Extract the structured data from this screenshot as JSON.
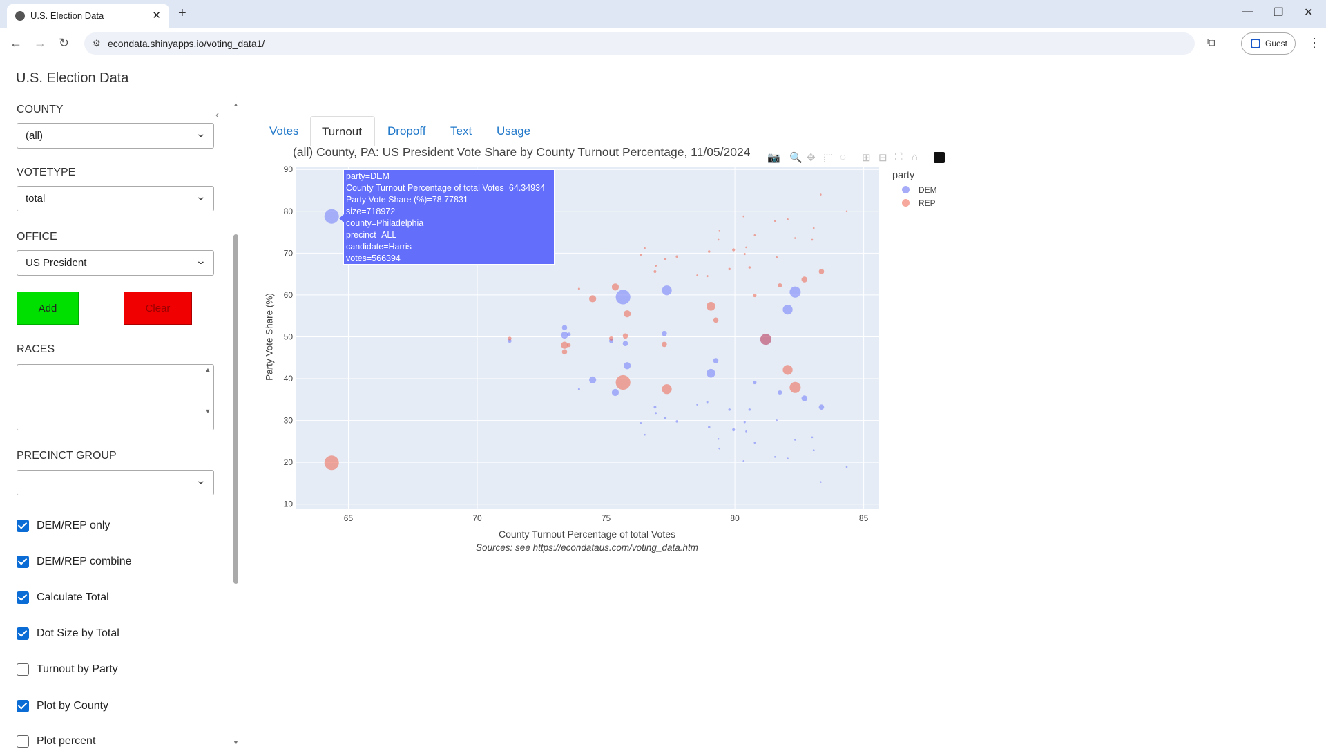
{
  "browser": {
    "tab_title": "U.S. Election Data",
    "url": "econdata.shinyapps.io/voting_data1/",
    "profile": "Guest"
  },
  "app": {
    "title": "U.S. Election Data"
  },
  "sidebar": {
    "county": {
      "label": "COUNTY",
      "value": "(all)"
    },
    "votetype": {
      "label": "VOTETYPE",
      "value": "total"
    },
    "office": {
      "label": "OFFICE",
      "value": "US President"
    },
    "add_label": "Add",
    "clear_label": "Clear",
    "races": {
      "label": "RACES",
      "value": ""
    },
    "precinct_group": {
      "label": "PRECINCT GROUP",
      "value": ""
    },
    "checkboxes": [
      {
        "label": "DEM/REP only",
        "checked": true
      },
      {
        "label": "DEM/REP combine",
        "checked": true
      },
      {
        "label": "Calculate Total",
        "checked": true
      },
      {
        "label": "Dot Size by Total",
        "checked": true
      },
      {
        "label": "Turnout by Party",
        "checked": false
      },
      {
        "label": "Plot by County",
        "checked": true
      },
      {
        "label": "Plot percent",
        "checked": false
      }
    ],
    "colors": {
      "add": "#00e000",
      "clear": "#f00000"
    }
  },
  "tabs": [
    {
      "label": "Votes"
    },
    {
      "label": "Turnout",
      "active": true
    },
    {
      "label": "Dropoff"
    },
    {
      "label": "Text"
    },
    {
      "label": "Usage"
    }
  ],
  "toolbar": [
    "camera-icon",
    "zoom-icon",
    "pan-icon",
    "box-select-icon",
    "lasso-icon",
    "zoom-in-icon",
    "zoom-out-icon",
    "autoscale-icon",
    "reset-axes-icon",
    "plotly-logo-icon"
  ],
  "tooltip": {
    "lines": [
      "party=DEM",
      "County Turnout Percentage of total Votes=64.34934",
      "Party Vote Share (%)=78.77831",
      "size=718972",
      "county=Philadelphia",
      "precinct=ALL",
      "candidate=Harris",
      "votes=566394"
    ]
  },
  "chart_data": {
    "type": "scatter",
    "title": "(all) County, PA: US President Vote Share by County Turnout Percentage, 11/05/2024",
    "xlabel": "County Turnout Percentage of total Votes",
    "ylabel": "Party Vote Share (%)",
    "note": "Sources: see https://econdataus.com/voting_data.htm",
    "xlim": [
      62.95,
      85.6
    ],
    "ylim": [
      8.8,
      90.7
    ],
    "xticks": [
      65,
      70,
      75,
      80,
      85
    ],
    "yticks": [
      10,
      20,
      30,
      40,
      50,
      60,
      70,
      80,
      90
    ],
    "grid": true,
    "legend_title": "party",
    "legend_position": "right",
    "series": [
      {
        "name": "DEM",
        "color": "#636efa"
      },
      {
        "name": "REP",
        "color": "#ef553b"
      }
    ],
    "columns": [
      "turnout",
      "dem_share",
      "rep_share",
      "size"
    ],
    "points": [
      [
        64.35,
        78.78,
        19.9,
        718972
      ],
      [
        75.66,
        59.5,
        39.1,
        730000
      ],
      [
        77.36,
        61.1,
        37.5,
        330000
      ],
      [
        82.34,
        60.7,
        37.9,
        420000
      ],
      [
        82.05,
        56.5,
        42.1,
        330000
      ],
      [
        81.2,
        49.4,
        49.4,
        420000
      ],
      [
        75.36,
        36.7,
        61.9,
        170000
      ],
      [
        74.48,
        39.7,
        59.1,
        170000
      ],
      [
        75.82,
        43.1,
        55.5,
        170000
      ],
      [
        79.07,
        41.3,
        57.3,
        260000
      ],
      [
        79.26,
        44.3,
        54.0,
        95000
      ],
      [
        73.39,
        50.4,
        48.0,
        170000
      ],
      [
        73.39,
        52.2,
        46.4,
        95000
      ],
      [
        73.56,
        50.6,
        48.0,
        45000
      ],
      [
        71.26,
        49.0,
        49.6,
        45000
      ],
      [
        75.2,
        49.0,
        49.6,
        60000
      ],
      [
        75.75,
        48.4,
        50.2,
        95000
      ],
      [
        77.26,
        50.8,
        48.2,
        95000
      ],
      [
        80.77,
        39.1,
        59.9,
        45000
      ],
      [
        81.75,
        36.7,
        62.3,
        60000
      ],
      [
        82.7,
        35.3,
        63.7,
        120000
      ],
      [
        83.36,
        33.2,
        65.6,
        95000
      ],
      [
        73.95,
        37.5,
        61.5,
        15000
      ],
      [
        76.9,
        33.2,
        65.6,
        25000
      ],
      [
        76.93,
        31.8,
        67.0,
        15000
      ],
      [
        77.3,
        30.6,
        68.6,
        20000
      ],
      [
        77.75,
        29.8,
        69.2,
        20000
      ],
      [
        76.35,
        29.4,
        69.6,
        10000
      ],
      [
        76.5,
        26.6,
        71.2,
        8000
      ],
      [
        78.54,
        33.8,
        64.7,
        10000
      ],
      [
        78.93,
        34.4,
        64.5,
        15000
      ],
      [
        79.0,
        28.4,
        70.4,
        20000
      ],
      [
        79.36,
        25.6,
        73.2,
        10000
      ],
      [
        79.4,
        23.3,
        75.3,
        8000
      ],
      [
        79.79,
        32.6,
        66.2,
        20000
      ],
      [
        79.95,
        27.8,
        70.8,
        30000
      ],
      [
        80.38,
        29.6,
        69.8,
        15000
      ],
      [
        80.44,
        27.4,
        71.4,
        8000
      ],
      [
        80.57,
        32.6,
        66.6,
        20000
      ],
      [
        80.77,
        24.7,
        74.3,
        10000
      ],
      [
        81.62,
        30.0,
        69.0,
        15000
      ],
      [
        82.05,
        20.9,
        78.1,
        10000
      ],
      [
        81.56,
        21.3,
        77.7,
        8000
      ],
      [
        80.34,
        20.3,
        78.8,
        5000
      ],
      [
        82.34,
        25.4,
        73.6,
        8000
      ],
      [
        83.06,
        22.9,
        76.0,
        10000
      ],
      [
        83.0,
        26.0,
        73.2,
        5000
      ],
      [
        83.33,
        15.3,
        84.0,
        8000
      ],
      [
        84.34,
        18.9,
        80.0,
        4000
      ]
    ]
  }
}
